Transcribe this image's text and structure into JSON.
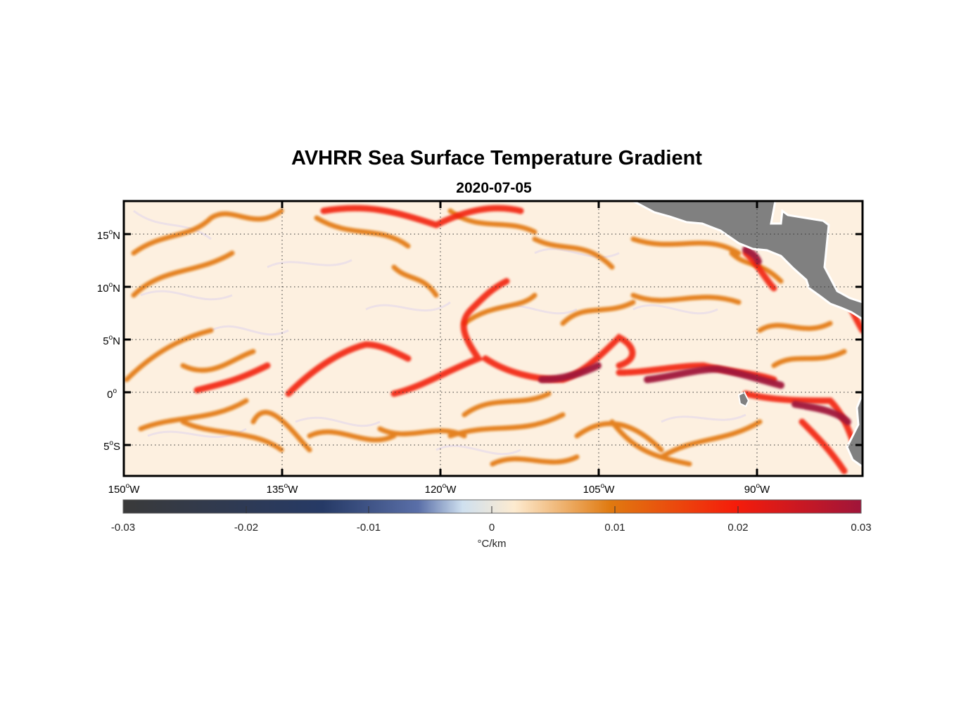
{
  "title": "AVHRR Sea Surface Temperature Gradient",
  "subtitle": "2020-07-05",
  "map": {
    "lon_ticks": [
      {
        "deg": "150",
        "hemi": "W"
      },
      {
        "deg": "135",
        "hemi": "W"
      },
      {
        "deg": "120",
        "hemi": "W"
      },
      {
        "deg": "105",
        "hemi": "W"
      },
      {
        "deg": "90",
        "hemi": "W"
      }
    ],
    "lat_ticks": [
      {
        "deg": "15",
        "hemi": "N"
      },
      {
        "deg": "10",
        "hemi": "N"
      },
      {
        "deg": "5",
        "hemi": "N"
      },
      {
        "deg": "0",
        "hemi": ""
      },
      {
        "deg": "5",
        "hemi": "S"
      }
    ],
    "lon_range": [
      -150,
      -80
    ],
    "lat_range": [
      -8,
      18
    ],
    "grid": "dotted",
    "land_color": "#808080",
    "coastline_color": "#ffffff"
  },
  "colorbar": {
    "ticks": [
      "-0.03",
      "-0.02",
      "-0.01",
      "0",
      "0.01",
      "0.02",
      "0.03"
    ],
    "unit": "°C/km",
    "range": [
      -0.03,
      0.03
    ],
    "colors": [
      "#3a3a3a",
      "#263a66",
      "#5a6fa8",
      "#cfe0ef",
      "#fdebd0",
      "#e07a10",
      "#f51c0a",
      "#a0153a"
    ]
  }
}
